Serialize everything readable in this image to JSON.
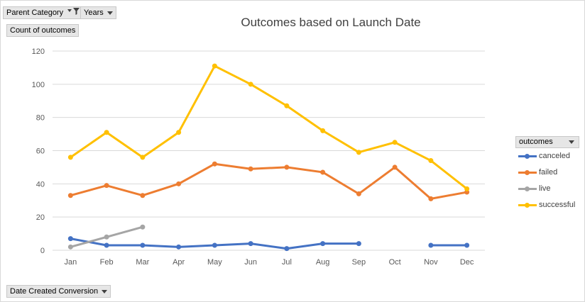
{
  "filters": {
    "parent_category": "Parent Category",
    "years": "Years",
    "values_field": "Count of outcomes",
    "axis_field": "Date Created Conversion"
  },
  "legend": {
    "title": "outcomes"
  },
  "chart_data": {
    "type": "line",
    "title": "Outcomes based on Launch Date",
    "xlabel": "",
    "ylabel": "",
    "ylim": [
      0,
      120
    ],
    "yticks": [
      0,
      20,
      40,
      60,
      80,
      100,
      120
    ],
    "grid": true,
    "legend_position": "right",
    "categories": [
      "Jan",
      "Feb",
      "Mar",
      "Apr",
      "May",
      "Jun",
      "Jul",
      "Aug",
      "Sep",
      "Oct",
      "Nov",
      "Dec"
    ],
    "series": [
      {
        "name": "canceled",
        "color": "#4472c4",
        "values": [
          7,
          3,
          3,
          2,
          3,
          4,
          1,
          4,
          4,
          null,
          3,
          3
        ]
      },
      {
        "name": "failed",
        "color": "#ed7d31",
        "values": [
          33,
          39,
          33,
          40,
          52,
          49,
          50,
          47,
          34,
          50,
          31,
          35
        ]
      },
      {
        "name": "live",
        "color": "#a5a5a5",
        "values": [
          2,
          8,
          14,
          null,
          null,
          null,
          null,
          null,
          null,
          null,
          null,
          null
        ]
      },
      {
        "name": "successful",
        "color": "#ffc000",
        "values": [
          56,
          71,
          56,
          71,
          111,
          100,
          87,
          72,
          59,
          65,
          54,
          37
        ]
      }
    ]
  }
}
